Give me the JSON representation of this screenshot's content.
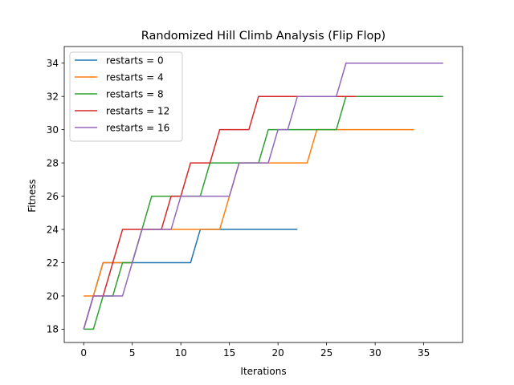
{
  "chart_data": {
    "type": "line",
    "title": "Randomized Hill Climb Analysis (Flip Flop)",
    "xlabel": "Iterations",
    "ylabel": "Fitness",
    "xlim": [
      -2,
      39
    ],
    "ylim": [
      17.2,
      35
    ],
    "xticks": [
      0,
      5,
      10,
      15,
      20,
      25,
      30,
      35
    ],
    "yticks": [
      18,
      20,
      22,
      24,
      26,
      28,
      30,
      32,
      34
    ],
    "grid": false,
    "legend_position": "top-left",
    "series": [
      {
        "name": "restarts = 0",
        "color": "#1f77b4",
        "points": [
          [
            0,
            18
          ],
          [
            1,
            20
          ],
          [
            2,
            22
          ],
          [
            3,
            22
          ],
          [
            4,
            22
          ],
          [
            5,
            22
          ],
          [
            6,
            22
          ],
          [
            7,
            22
          ],
          [
            8,
            22
          ],
          [
            9,
            22
          ],
          [
            10,
            22
          ],
          [
            11,
            22
          ],
          [
            12,
            24
          ],
          [
            13,
            24
          ],
          [
            14,
            24
          ],
          [
            15,
            24
          ],
          [
            16,
            24
          ],
          [
            17,
            24
          ],
          [
            18,
            24
          ],
          [
            19,
            24
          ],
          [
            20,
            24
          ],
          [
            21,
            24
          ],
          [
            22,
            24
          ]
        ]
      },
      {
        "name": "restarts = 4",
        "color": "#ff7f0e",
        "points": [
          [
            0,
            20
          ],
          [
            1,
            20
          ],
          [
            2,
            22
          ],
          [
            3,
            22
          ],
          [
            4,
            22
          ],
          [
            5,
            22
          ],
          [
            6,
            24
          ],
          [
            7,
            24
          ],
          [
            8,
            24
          ],
          [
            9,
            24
          ],
          [
            10,
            24
          ],
          [
            11,
            24
          ],
          [
            12,
            24
          ],
          [
            13,
            24
          ],
          [
            14,
            24
          ],
          [
            15,
            26
          ],
          [
            16,
            28
          ],
          [
            17,
            28
          ],
          [
            18,
            28
          ],
          [
            19,
            28
          ],
          [
            20,
            28
          ],
          [
            21,
            28
          ],
          [
            22,
            28
          ],
          [
            23,
            28
          ],
          [
            24,
            30
          ],
          [
            25,
            30
          ],
          [
            26,
            30
          ],
          [
            27,
            30
          ],
          [
            28,
            30
          ],
          [
            29,
            30
          ],
          [
            30,
            30
          ],
          [
            31,
            30
          ],
          [
            32,
            30
          ],
          [
            33,
            30
          ],
          [
            34,
            30
          ]
        ]
      },
      {
        "name": "restarts = 8",
        "color": "#2ca02c",
        "points": [
          [
            0,
            18
          ],
          [
            1,
            18
          ],
          [
            2,
            20
          ],
          [
            3,
            20
          ],
          [
            4,
            22
          ],
          [
            5,
            22
          ],
          [
            6,
            24
          ],
          [
            7,
            26
          ],
          [
            8,
            26
          ],
          [
            9,
            26
          ],
          [
            10,
            26
          ],
          [
            11,
            26
          ],
          [
            12,
            26
          ],
          [
            13,
            28
          ],
          [
            14,
            28
          ],
          [
            15,
            28
          ],
          [
            16,
            28
          ],
          [
            17,
            28
          ],
          [
            18,
            28
          ],
          [
            19,
            30
          ],
          [
            20,
            30
          ],
          [
            21,
            30
          ],
          [
            22,
            30
          ],
          [
            23,
            30
          ],
          [
            24,
            30
          ],
          [
            25,
            30
          ],
          [
            26,
            30
          ],
          [
            27,
            32
          ],
          [
            28,
            32
          ],
          [
            29,
            32
          ],
          [
            30,
            32
          ],
          [
            31,
            32
          ],
          [
            32,
            32
          ],
          [
            33,
            32
          ],
          [
            34,
            32
          ],
          [
            35,
            32
          ],
          [
            36,
            32
          ],
          [
            37,
            32
          ]
        ]
      },
      {
        "name": "restarts = 12",
        "color": "#d62728",
        "points": [
          [
            0,
            18
          ],
          [
            1,
            20
          ],
          [
            2,
            20
          ],
          [
            3,
            22
          ],
          [
            4,
            24
          ],
          [
            5,
            24
          ],
          [
            6,
            24
          ],
          [
            7,
            24
          ],
          [
            8,
            24
          ],
          [
            9,
            26
          ],
          [
            10,
            26
          ],
          [
            11,
            28
          ],
          [
            12,
            28
          ],
          [
            13,
            28
          ],
          [
            14,
            30
          ],
          [
            15,
            30
          ],
          [
            16,
            30
          ],
          [
            17,
            30
          ],
          [
            18,
            32
          ],
          [
            19,
            32
          ],
          [
            20,
            32
          ],
          [
            21,
            32
          ],
          [
            22,
            32
          ],
          [
            23,
            32
          ],
          [
            24,
            32
          ],
          [
            25,
            32
          ],
          [
            26,
            32
          ],
          [
            27,
            32
          ],
          [
            28,
            32
          ]
        ]
      },
      {
        "name": "restarts = 16",
        "color": "#9467bd",
        "points": [
          [
            0,
            18
          ],
          [
            1,
            20
          ],
          [
            2,
            20
          ],
          [
            3,
            20
          ],
          [
            4,
            20
          ],
          [
            5,
            22
          ],
          [
            6,
            24
          ],
          [
            7,
            24
          ],
          [
            8,
            24
          ],
          [
            9,
            24
          ],
          [
            10,
            26
          ],
          [
            11,
            26
          ],
          [
            12,
            26
          ],
          [
            13,
            26
          ],
          [
            14,
            26
          ],
          [
            15,
            26
          ],
          [
            16,
            28
          ],
          [
            17,
            28
          ],
          [
            18,
            28
          ],
          [
            19,
            28
          ],
          [
            20,
            30
          ],
          [
            21,
            30
          ],
          [
            22,
            32
          ],
          [
            23,
            32
          ],
          [
            24,
            32
          ],
          [
            25,
            32
          ],
          [
            26,
            32
          ],
          [
            27,
            34
          ],
          [
            28,
            34
          ],
          [
            29,
            34
          ],
          [
            30,
            34
          ],
          [
            31,
            34
          ],
          [
            32,
            34
          ],
          [
            33,
            34
          ],
          [
            34,
            34
          ],
          [
            35,
            34
          ],
          [
            36,
            34
          ],
          [
            37,
            34
          ]
        ]
      }
    ]
  }
}
